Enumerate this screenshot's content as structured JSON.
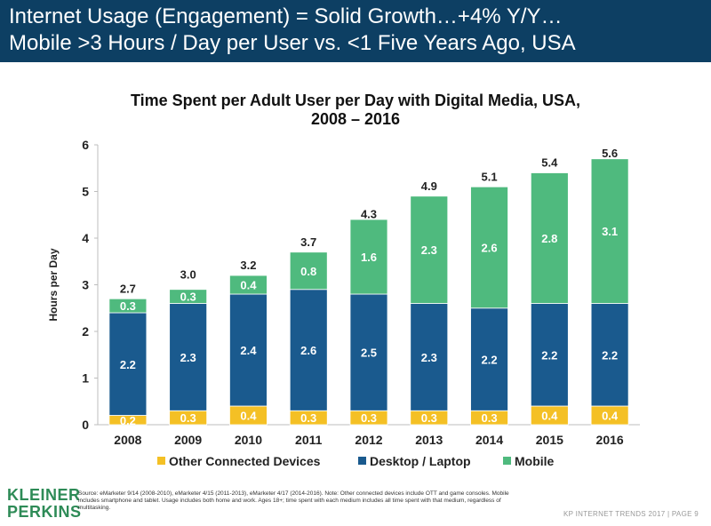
{
  "header": {
    "line1": "Internet Usage (Engagement) = Solid Growth…+4% Y/Y…",
    "line2": "Mobile >3 Hours / Day per User vs. <1 Five Years Ago, USA"
  },
  "footer": {
    "logo_line1": "KLEINER",
    "logo_line2": "PERKINS",
    "source": "Source: eMarketer 9/14 (2008-2010), eMarketer 4/15 (2011-2013), eMarketer 4/17 (2014-2016). Note: Other connected devices include OTT and game consoles. Mobile includes smartphone and tablet. Usage includes both home and work. Ages 18+; time spent with each medium includes all time spent with that medium, regardless of multitasking.",
    "page_label": "KP INTERNET TRENDS 2017  |  PAGE 9"
  },
  "colors": {
    "header_bg": "#0d3f63",
    "other": "#f4c025",
    "desktop": "#1a5a8e",
    "mobile": "#4fba7e",
    "logo": "#2e8b57"
  },
  "chart_data": {
    "type": "bar",
    "stacked": true,
    "title_line1": "Time Spent per Adult User per Day with Digital Media, USA,",
    "title_line2": "2008 – 2016",
    "xlabel": "",
    "ylabel": "Hours per Day",
    "ylim": [
      0,
      6
    ],
    "yticks": [
      "0",
      "1",
      "2",
      "3",
      "4",
      "5",
      "6"
    ],
    "grid": false,
    "legend_position": "bottom",
    "categories": [
      "2008",
      "2009",
      "2010",
      "2011",
      "2012",
      "2013",
      "2014",
      "2015",
      "2016"
    ],
    "series": [
      {
        "name": "Other Connected Devices",
        "color": "#f4c025",
        "values": [
          0.2,
          0.3,
          0.4,
          0.3,
          0.3,
          0.3,
          0.3,
          0.4,
          0.4
        ],
        "labels": [
          "0.2",
          "0.3",
          "0.4",
          "0.3",
          "0.3",
          "0.3",
          "0.3",
          "0.4",
          "0.4"
        ]
      },
      {
        "name": "Desktop / Laptop",
        "color": "#1a5a8e",
        "values": [
          2.2,
          2.3,
          2.4,
          2.6,
          2.5,
          2.3,
          2.2,
          2.2,
          2.2
        ],
        "labels": [
          "2.2",
          "2.3",
          "2.4",
          "2.6",
          "2.5",
          "2.3",
          "2.2",
          "2.2",
          "2.2"
        ]
      },
      {
        "name": "Mobile",
        "color": "#4fba7e",
        "values": [
          0.3,
          0.3,
          0.4,
          0.8,
          1.6,
          2.3,
          2.6,
          2.8,
          3.1
        ],
        "labels": [
          "0.3",
          "0.3",
          "0.4",
          "0.8",
          "1.6",
          "2.3",
          "2.6",
          "2.8",
          "3.1"
        ]
      }
    ],
    "totals": [
      "2.7",
      "3.0",
      "3.2",
      "3.7",
      "4.3",
      "4.9",
      "5.1",
      "5.4",
      "5.6"
    ],
    "total_values": [
      2.7,
      3.0,
      3.2,
      3.7,
      4.3,
      4.9,
      5.1,
      5.4,
      5.6
    ]
  }
}
